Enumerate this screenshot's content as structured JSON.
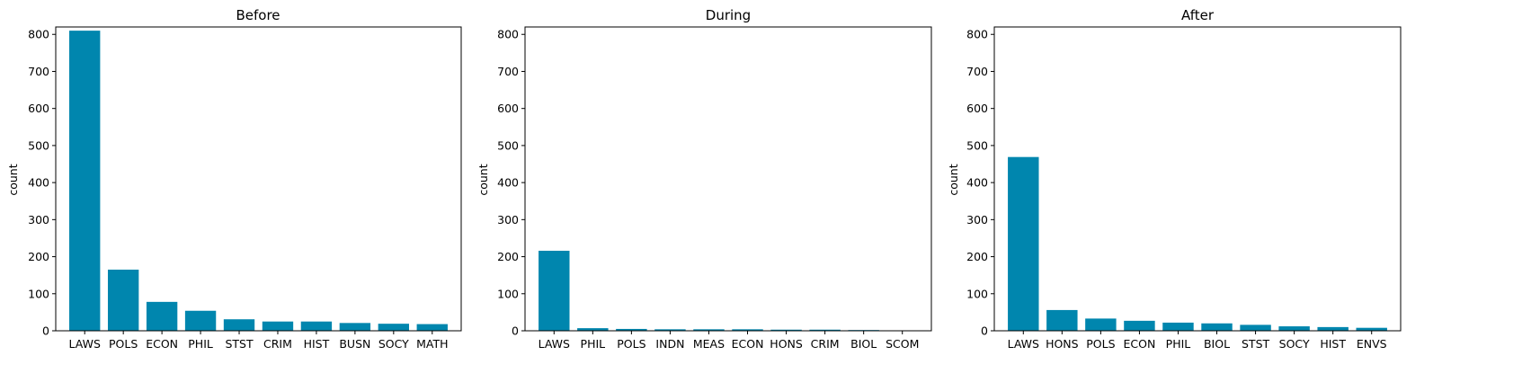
{
  "bar_color": "#0086ae",
  "chart_data": [
    {
      "type": "bar",
      "title": "Before",
      "xlabel": "",
      "ylabel": "count",
      "ylim": [
        0,
        820
      ],
      "yticks": [
        0,
        100,
        200,
        300,
        400,
        500,
        600,
        700,
        800
      ],
      "categories": [
        "LAWS",
        "POLS",
        "ECON",
        "PHIL",
        "STST",
        "CRIM",
        "HIST",
        "BUSN",
        "SOCY",
        "MATH"
      ],
      "values": [
        810,
        165,
        78,
        54,
        31,
        25,
        25,
        21,
        19,
        18
      ]
    },
    {
      "type": "bar",
      "title": "During",
      "xlabel": "",
      "ylabel": "count",
      "ylim": [
        0,
        820
      ],
      "yticks": [
        0,
        100,
        200,
        300,
        400,
        500,
        600,
        700,
        800
      ],
      "categories": [
        "LAWS",
        "PHIL",
        "POLS",
        "INDN",
        "MEAS",
        "ECON",
        "HONS",
        "CRIM",
        "BIOL",
        "SCOM"
      ],
      "values": [
        216,
        7,
        5,
        4,
        4,
        4,
        3,
        3,
        2,
        1
      ]
    },
    {
      "type": "bar",
      "title": "After",
      "xlabel": "",
      "ylabel": "count",
      "ylim": [
        0,
        820
      ],
      "yticks": [
        0,
        100,
        200,
        300,
        400,
        500,
        600,
        700,
        800
      ],
      "categories": [
        "LAWS",
        "HONS",
        "POLS",
        "ECON",
        "PHIL",
        "BIOL",
        "STST",
        "SOCY",
        "HIST",
        "ENVS"
      ],
      "values": [
        469,
        56,
        33,
        27,
        22,
        20,
        16,
        12,
        10,
        8
      ]
    }
  ]
}
